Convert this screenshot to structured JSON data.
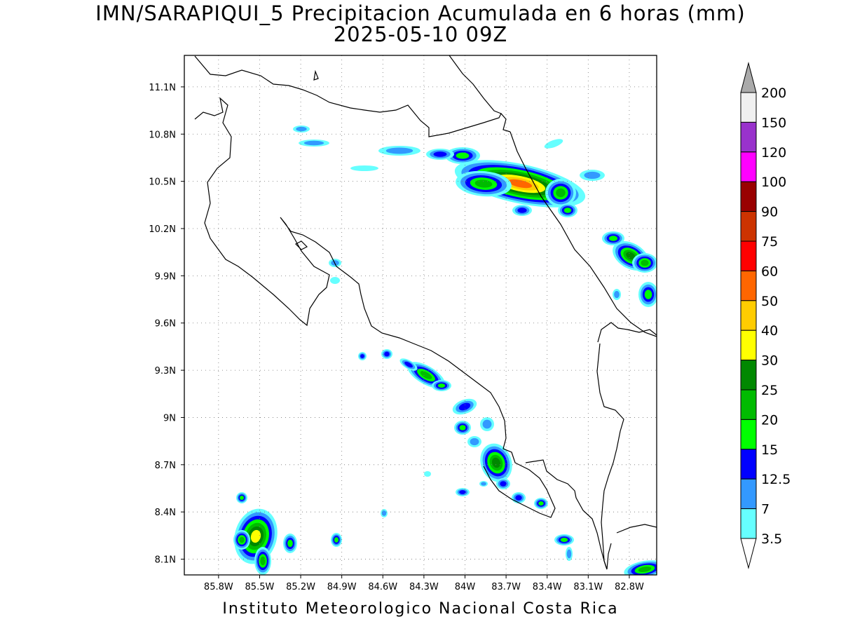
{
  "title_line1": "IMN/SARAPIQUI_5 Precipitacion Acumulada en 6 horas (mm)",
  "title_line2": "2025-05-10 09Z",
  "footer": "Instituto Meteorologico Nacional Costa Rica",
  "map": {
    "lon_range": [
      -86.05,
      -82.6
    ],
    "lat_range": [
      8.0,
      11.3
    ],
    "lon_ticks": [
      "85.8W",
      "85.5W",
      "85.2W",
      "84.9W",
      "84.6W",
      "84.3W",
      "84W",
      "83.7W",
      "83.4W",
      "83.1W",
      "82.8W"
    ],
    "lat_ticks": [
      "11.1N",
      "10.8N",
      "10.5N",
      "10.2N",
      "9.9N",
      "9.6N",
      "9.3N",
      "9N",
      "8.7N",
      "8.4N",
      "8.1N"
    ],
    "grid": true
  },
  "legend": {
    "labels": [
      "200",
      "150",
      "120",
      "100",
      "90",
      "75",
      "60",
      "50",
      "40",
      "30",
      "25",
      "20",
      "15",
      "12.5",
      "7",
      "3.5"
    ],
    "colors": [
      "#aaaaaa",
      "#f0f0f0",
      "#9932cc",
      "#ff00ff",
      "#990000",
      "#cc3300",
      "#ff0000",
      "#ff6600",
      "#ffcc00",
      "#ffff00",
      "#008800",
      "#00bb00",
      "#00ff00",
      "#0000ff",
      "#3399ff",
      "#66ffff",
      "#ffffff"
    ]
  }
}
